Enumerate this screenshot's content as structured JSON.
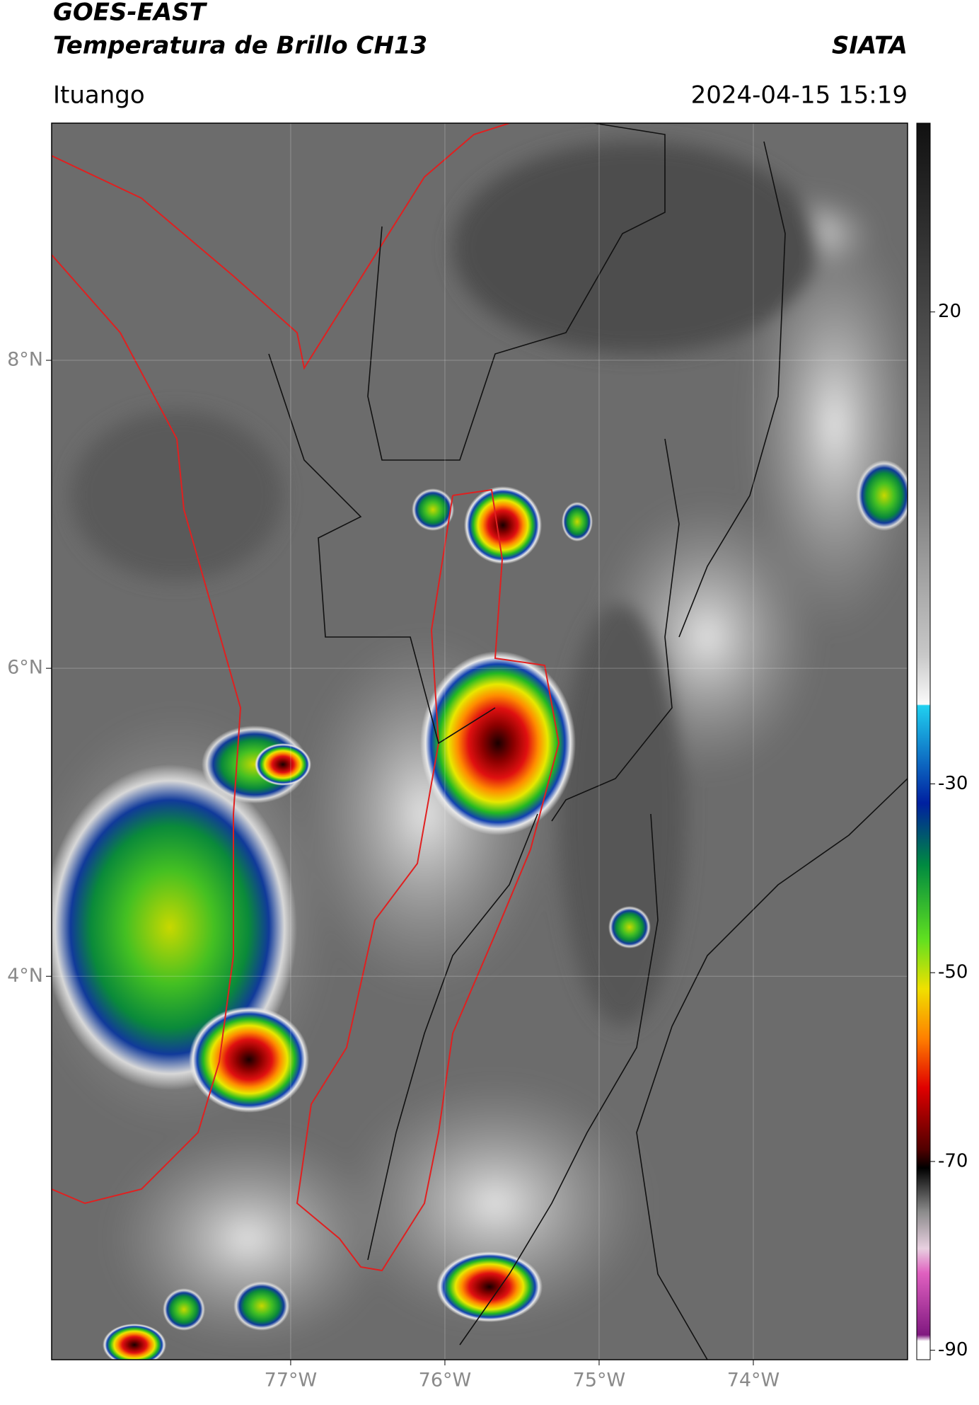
{
  "chart_data": {
    "type": "map",
    "title": "GOES-EAST",
    "subtitle": "Temperatura de Brillo CH13",
    "source": "SIATA",
    "location": "Ituango",
    "datetime": "2024-04-15 15:19",
    "xlim": [
      -78.55,
      -73.0
    ],
    "ylim": [
      1.51,
      9.54
    ],
    "xticks": [
      {
        "value": -77,
        "label": "77°W"
      },
      {
        "value": -76,
        "label": "76°W"
      },
      {
        "value": -75,
        "label": "75°W"
      },
      {
        "value": -74,
        "label": "74°W"
      }
    ],
    "yticks": [
      {
        "value": 8,
        "label": "8°N"
      },
      {
        "value": 6,
        "label": "6°N"
      },
      {
        "value": 4,
        "label": "4°N"
      }
    ],
    "grid": true,
    "colorbar": {
      "lim": [
        -91,
        40
      ],
      "ticks": [
        20,
        -30,
        -50,
        -70,
        -90
      ]
    }
  }
}
